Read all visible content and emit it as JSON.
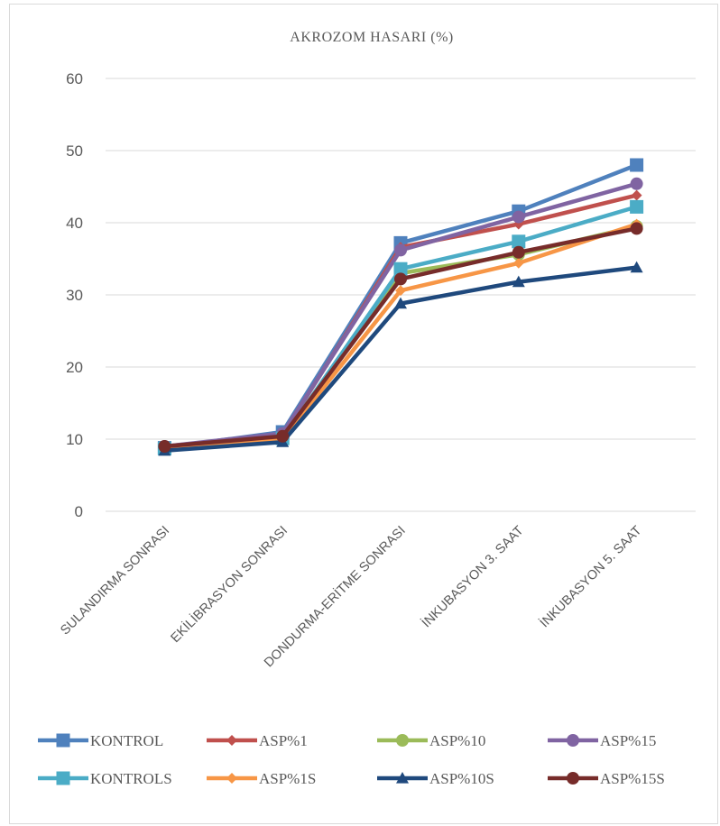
{
  "chart_data": {
    "type": "line",
    "title": "AKROZOM HASARI (%)",
    "categories": [
      "SULANDIRMA SONRASI",
      "EKİLİBRASYON SONRASI",
      "DONDURMA-ERİTME SONRASI",
      "İNKUBASYON 3. SAAT",
      "İNKUBASYON 5. SAAT"
    ],
    "ylim": [
      0,
      60
    ],
    "yticks": [
      0,
      10,
      20,
      30,
      40,
      50,
      60
    ],
    "grid": true,
    "legend_position": "bottom",
    "series": [
      {
        "name": "KONTROL",
        "color": "#4f81bd",
        "marker": "square",
        "values": [
          8.8,
          11.0,
          37.2,
          41.6,
          48.0
        ]
      },
      {
        "name": "ASP%1",
        "color": "#c0504d",
        "marker": "diamond",
        "values": [
          9.0,
          10.6,
          36.6,
          39.8,
          43.8
        ]
      },
      {
        "name": "ASP%10",
        "color": "#9bbb59",
        "marker": "circle",
        "values": [
          8.9,
          10.0,
          33.0,
          35.6,
          39.5
        ]
      },
      {
        "name": "ASP%15",
        "color": "#8064a2",
        "marker": "circle",
        "values": [
          9.0,
          10.8,
          36.2,
          40.8,
          45.4
        ]
      },
      {
        "name": "KONTROLS",
        "color": "#4bacc6",
        "marker": "square",
        "values": [
          8.7,
          10.1,
          33.6,
          37.4,
          42.2
        ]
      },
      {
        "name": "ASP%1S",
        "color": "#f79646",
        "marker": "diamond",
        "values": [
          8.6,
          10.0,
          30.6,
          34.4,
          39.8
        ]
      },
      {
        "name": "ASP%10S",
        "color": "#1f497d",
        "marker": "triangle",
        "values": [
          8.4,
          9.6,
          28.8,
          31.8,
          33.8
        ]
      },
      {
        "name": "ASP%15S",
        "color": "#772c2a",
        "marker": "circle",
        "values": [
          9.0,
          10.4,
          32.2,
          35.9,
          39.2
        ]
      }
    ]
  }
}
